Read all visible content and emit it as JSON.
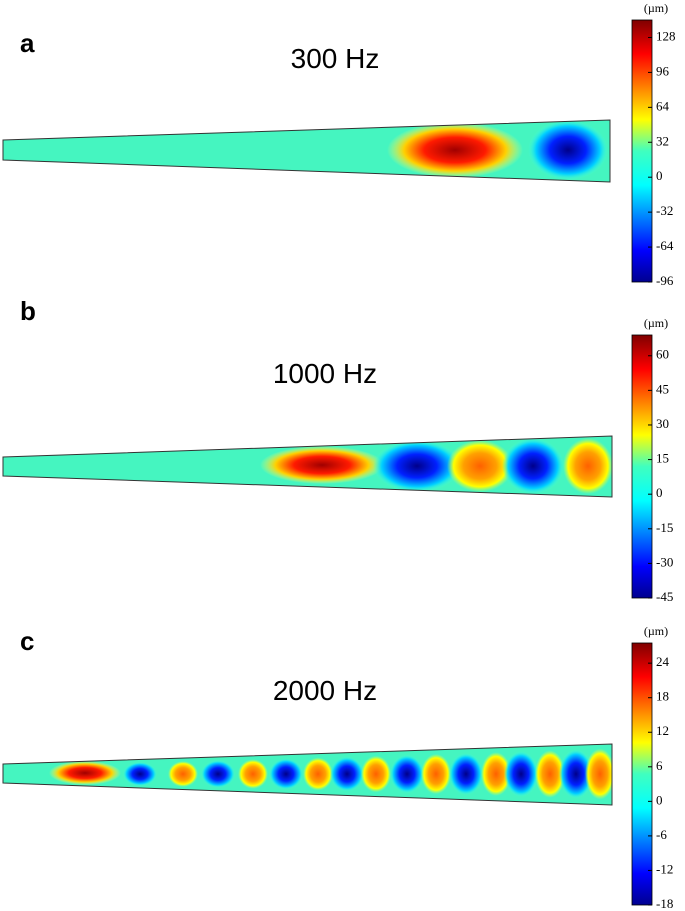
{
  "chart_data": [
    {
      "type": "heatmap",
      "panel_label": "a",
      "title": "300 Hz",
      "colorbar_unit": "(µm)",
      "clim": [
        -96,
        144
      ],
      "colorbar_ticks": [
        128,
        96,
        64,
        32,
        0,
        -32,
        -64,
        -96
      ]
    },
    {
      "type": "heatmap",
      "panel_label": "b",
      "title": "1000 Hz",
      "colorbar_unit": "(µm)",
      "clim": [
        -45,
        69
      ],
      "colorbar_ticks": [
        60,
        45,
        30,
        15,
        0,
        -15,
        -30,
        -45
      ]
    },
    {
      "type": "heatmap",
      "panel_label": "c",
      "title": "2000 Hz",
      "colorbar_unit": "(µm)",
      "clim": [
        -18,
        27.5
      ],
      "colorbar_ticks": [
        24,
        18,
        12,
        6,
        0,
        -6,
        -12,
        -18
      ]
    }
  ]
}
